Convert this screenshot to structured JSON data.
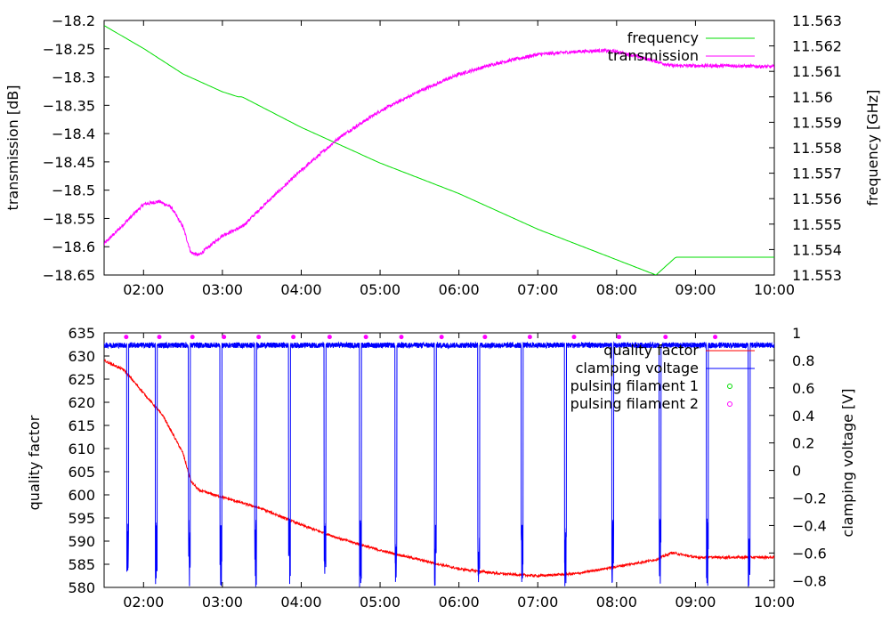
{
  "chart_data": [
    {
      "type": "line",
      "ylabel": "transmission [dB]",
      "y2label": "frequency [GHz]",
      "xlim": [
        1.5,
        10.0
      ],
      "ylim": [
        -18.65,
        -18.2
      ],
      "y2lim": [
        11.553,
        11.563
      ],
      "xticks": [
        "02:00",
        "03:00",
        "04:00",
        "05:00",
        "06:00",
        "07:00",
        "08:00",
        "09:00",
        "10:00"
      ],
      "xtick_values": [
        2,
        3,
        4,
        5,
        6,
        7,
        8,
        9,
        10
      ],
      "yticks": [
        "-18.2",
        "-18.25",
        "-18.3",
        "-18.35",
        "-18.4",
        "-18.45",
        "-18.5",
        "-18.55",
        "-18.6",
        "-18.65"
      ],
      "ytick_values": [
        -18.2,
        -18.25,
        -18.3,
        -18.35,
        -18.4,
        -18.45,
        -18.5,
        -18.55,
        -18.6,
        -18.65
      ],
      "y2ticks": [
        "11.563",
        "11.562",
        "11.561",
        "11.56",
        "11.559",
        "11.558",
        "11.557",
        "11.556",
        "11.555",
        "11.554",
        "11.553"
      ],
      "y2tick_values": [
        11.563,
        11.562,
        11.561,
        11.56,
        11.559,
        11.558,
        11.557,
        11.556,
        11.555,
        11.554,
        11.553
      ],
      "legend_position": "top-right",
      "series": [
        {
          "name": "frequency",
          "axis": "right",
          "color": "#00dd00",
          "x": [
            1.5,
            2.0,
            2.5,
            3.0,
            3.2,
            3.25,
            3.5,
            4.0,
            4.5,
            5.0,
            5.5,
            6.0,
            6.5,
            7.0,
            7.5,
            8.0,
            8.5,
            8.75,
            9.0,
            10.0
          ],
          "y": [
            11.5628,
            11.5619,
            11.5609,
            11.5602,
            11.56,
            11.56,
            11.5596,
            11.5588,
            11.5581,
            11.5574,
            11.5568,
            11.5562,
            11.5555,
            11.5548,
            11.5542,
            11.5536,
            11.553,
            11.5537,
            11.5537,
            11.5537
          ]
        },
        {
          "name": "transmission",
          "axis": "left",
          "color": "#ff00ff",
          "noise": 0.006,
          "x": [
            1.5,
            1.75,
            2.0,
            2.2,
            2.35,
            2.5,
            2.6,
            2.7,
            3.0,
            3.25,
            3.5,
            4.0,
            4.5,
            5.0,
            5.5,
            6.0,
            6.5,
            7.0,
            7.5,
            7.8,
            8.0,
            8.3,
            8.7,
            9.0,
            9.5,
            10.0
          ],
          "y": [
            -18.595,
            -18.56,
            -18.525,
            -18.52,
            -18.53,
            -18.565,
            -18.61,
            -18.615,
            -18.58,
            -18.565,
            -18.53,
            -18.465,
            -18.405,
            -18.36,
            -18.325,
            -18.295,
            -18.275,
            -18.26,
            -18.255,
            -18.253,
            -18.255,
            -18.265,
            -18.28,
            -18.28,
            -18.28,
            -18.282
          ]
        }
      ]
    },
    {
      "type": "line",
      "ylabel": "quality factor",
      "y2label": "clamping voltage [V]",
      "xlim": [
        1.5,
        10.0
      ],
      "ylim": [
        580,
        635
      ],
      "y2lim": [
        -0.85,
        1.0
      ],
      "xticks": [
        "02:00",
        "03:00",
        "04:00",
        "05:00",
        "06:00",
        "07:00",
        "08:00",
        "09:00",
        "10:00"
      ],
      "xtick_values": [
        2,
        3,
        4,
        5,
        6,
        7,
        8,
        9,
        10
      ],
      "yticks": [
        "635",
        "630",
        "625",
        "620",
        "615",
        "610",
        "605",
        "600",
        "595",
        "590",
        "585",
        "580"
      ],
      "ytick_values": [
        635,
        630,
        625,
        620,
        615,
        610,
        605,
        600,
        595,
        590,
        585,
        580
      ],
      "y2ticks": [
        "1",
        "0.8",
        "0.6",
        "0.4",
        "0.2",
        "0",
        "-0.2",
        "-0.4",
        "-0.6",
        "-0.8"
      ],
      "y2tick_values": [
        1,
        0.8,
        0.6,
        0.4,
        0.2,
        0,
        -0.2,
        -0.4,
        -0.6,
        -0.8
      ],
      "legend_position": "top-right",
      "series": [
        {
          "name": "quality factor",
          "axis": "left",
          "color": "#ff0000",
          "noise": 0.5,
          "x": [
            1.5,
            1.75,
            2.0,
            2.25,
            2.5,
            2.6,
            2.7,
            3.0,
            3.5,
            4.0,
            4.5,
            5.0,
            5.5,
            6.0,
            6.5,
            7.0,
            7.5,
            8.0,
            8.5,
            8.7,
            9.0,
            9.5,
            10.0
          ],
          "y": [
            629,
            627,
            622,
            617,
            609,
            603,
            601,
            599.5,
            597,
            593.5,
            590.5,
            588,
            586,
            584,
            583,
            582.5,
            583,
            584.5,
            586,
            587.5,
            586.5,
            586.5,
            586.5
          ]
        },
        {
          "name": "clamping voltage",
          "axis": "right",
          "color": "#0000ff",
          "baseline": 0.91,
          "drop_to": -0.85,
          "drops": [
            1.8,
            2.16,
            2.58,
            2.98,
            3.42,
            3.85,
            4.3,
            4.75,
            5.2,
            5.7,
            6.25,
            6.8,
            7.35,
            7.95,
            8.55,
            9.15,
            9.68
          ]
        },
        {
          "name": "pulsing filament 1",
          "axis": "right",
          "color": "#00dd00",
          "marker": "circle",
          "x": [],
          "y": []
        },
        {
          "name": "pulsing filament 2",
          "axis": "right",
          "color": "#ff00ff",
          "marker": "circle",
          "x": [
            1.78,
            2.2,
            2.62,
            3.02,
            3.46,
            3.9,
            4.36,
            4.82,
            5.27,
            5.78,
            6.33,
            6.9,
            7.46,
            8.03,
            8.62,
            9.25
          ],
          "y": [
            0.97,
            0.97,
            0.97,
            0.97,
            0.97,
            0.97,
            0.97,
            0.97,
            0.97,
            0.97,
            0.97,
            0.97,
            0.97,
            0.97,
            0.97,
            0.97
          ]
        }
      ]
    }
  ]
}
